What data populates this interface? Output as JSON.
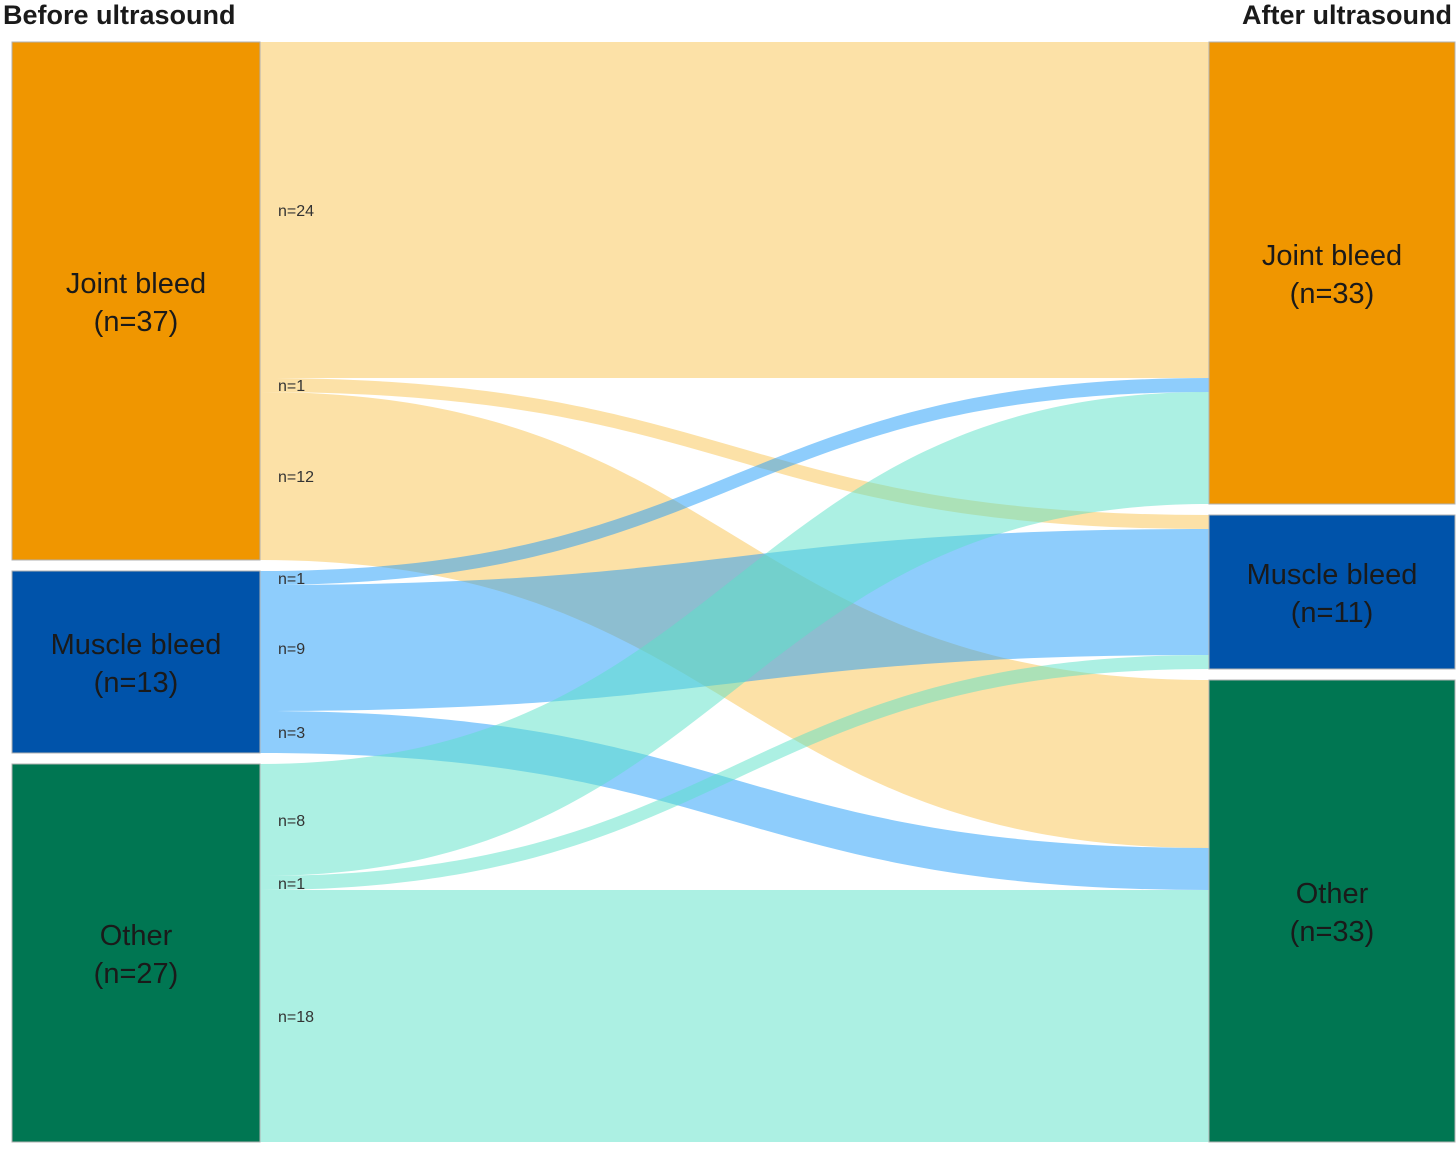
{
  "chart_data": {
    "type": "sankey",
    "title": "",
    "columns": {
      "left_title": "Before ultrasound",
      "right_title": "After ultrasound"
    },
    "left_nodes": [
      {
        "id": "joint",
        "name": "Joint bleed",
        "count_label": "(n=37)",
        "value": 37,
        "color": "#F09600",
        "text_color": "#1a1a1a"
      },
      {
        "id": "muscle",
        "name": "Muscle bleed",
        "count_label": "(n=13)",
        "value": 13,
        "color": "#0053AA",
        "text_color": "#1a1a1a"
      },
      {
        "id": "other",
        "name": "Other",
        "count_label": "(n=27)",
        "value": 27,
        "color": "#007652",
        "text_color": "#1a1a1a"
      }
    ],
    "right_nodes": [
      {
        "id": "joint",
        "name": "Joint bleed",
        "count_label": "(n=33)",
        "value": 33,
        "color": "#F09600",
        "text_color": "#1a1a1a"
      },
      {
        "id": "muscle",
        "name": "Muscle bleed",
        "count_label": "(n=11)",
        "value": 11,
        "color": "#0053AA",
        "text_color": "#1a1a1a"
      },
      {
        "id": "other",
        "name": "Other",
        "count_label": "(n=33)",
        "value": 33,
        "color": "#007652",
        "text_color": "#1a1a1a"
      }
    ],
    "flows": [
      {
        "source": "joint",
        "target": "joint",
        "value": 24,
        "label": "n=24"
      },
      {
        "source": "joint",
        "target": "muscle",
        "value": 1,
        "label": "n=1"
      },
      {
        "source": "joint",
        "target": "other",
        "value": 12,
        "label": "n=12"
      },
      {
        "source": "muscle",
        "target": "joint",
        "value": 1,
        "label": "n=1"
      },
      {
        "source": "muscle",
        "target": "muscle",
        "value": 9,
        "label": "n=9"
      },
      {
        "source": "muscle",
        "target": "other",
        "value": 3,
        "label": "n=3"
      },
      {
        "source": "other",
        "target": "joint",
        "value": 8,
        "label": "n=8"
      },
      {
        "source": "other",
        "target": "muscle",
        "value": 1,
        "label": "n=1"
      },
      {
        "source": "other",
        "target": "other",
        "value": 18,
        "label": "n=18"
      }
    ],
    "flow_colors": {
      "joint": "#FAC350",
      "muscle": "#1E9BFA",
      "other": "#5AE1C8"
    },
    "flow_opacity": 0.5
  }
}
